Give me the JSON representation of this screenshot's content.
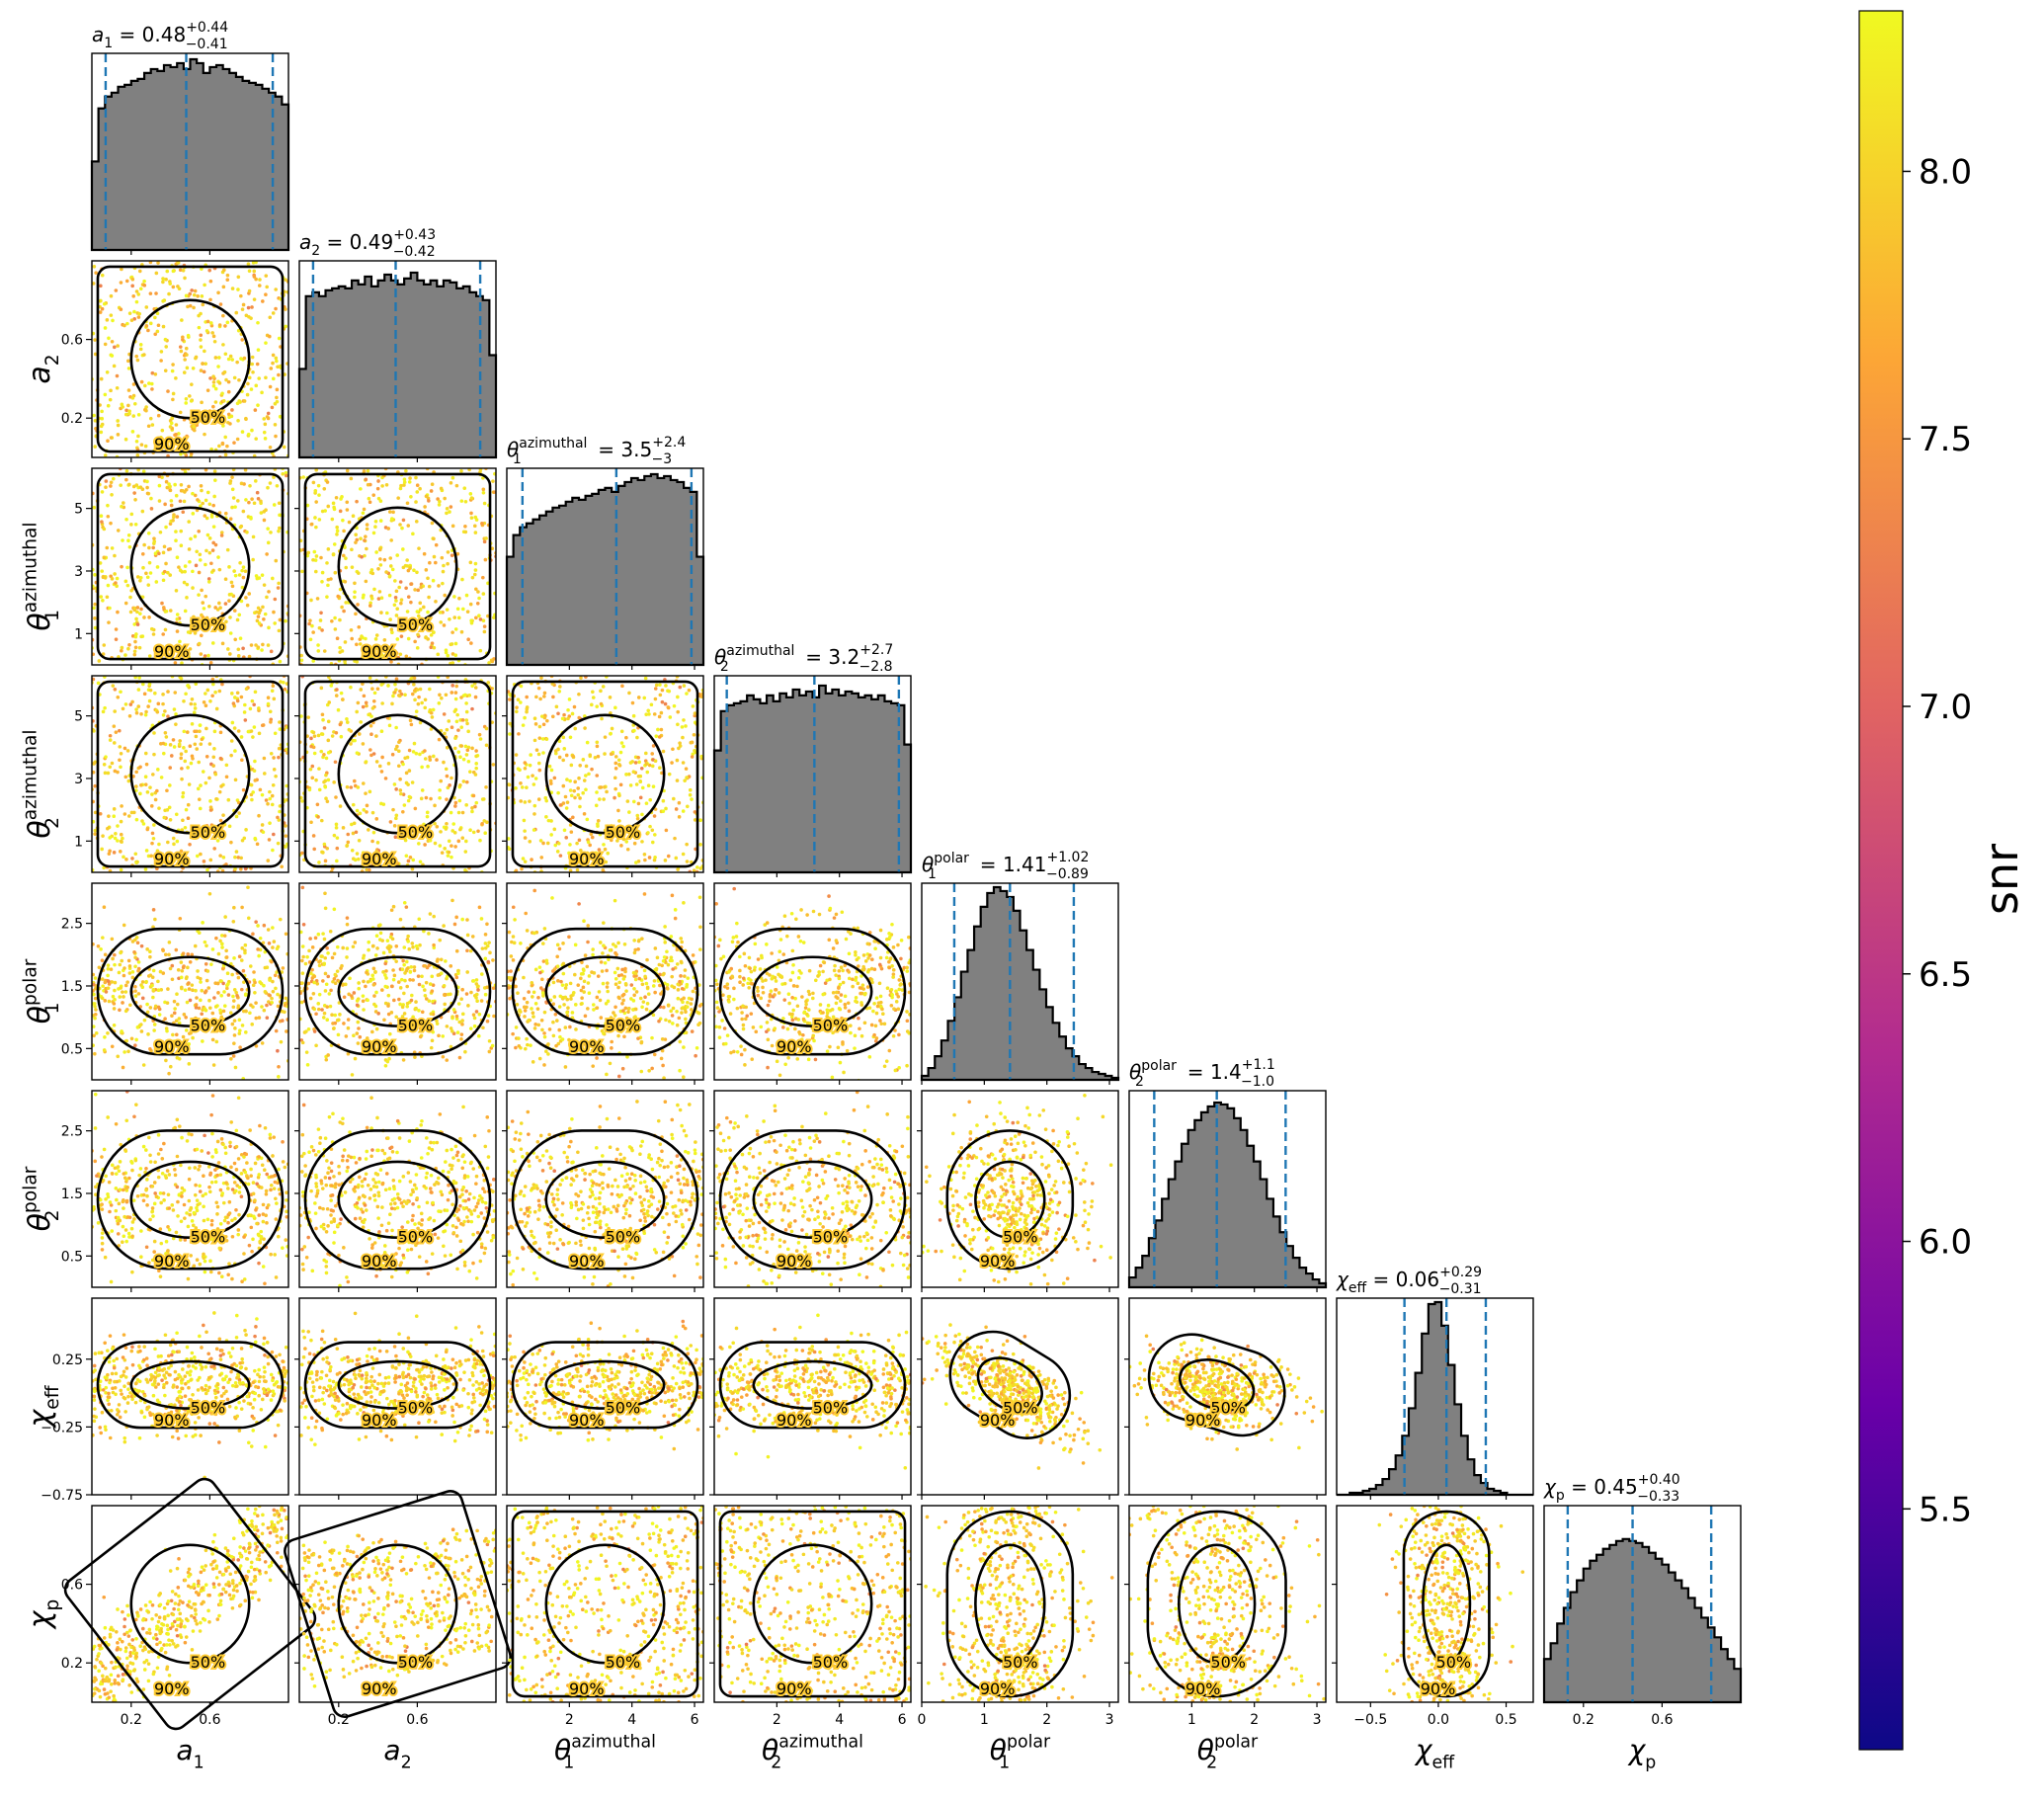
{
  "colors": {
    "histogram_fill": "#808080",
    "quantile_line": "#1f77b4",
    "contour": "#000000",
    "colormap": [
      "#0d0887",
      "#6a00a8",
      "#b12a90",
      "#e16462",
      "#fca636",
      "#f0f921"
    ]
  },
  "chart_data": {
    "type": "scatter",
    "subtype": "corner plot (pairwise scatter + contours, marginal histograms)",
    "parameters": [
      {
        "key": "a1",
        "symbol": "a",
        "sub": "1",
        "sup": "",
        "title_value": "0.48",
        "title_plus": "+0.44",
        "title_minus": "−0.41",
        "median": 0.48,
        "low": 0.07,
        "high": 0.92,
        "range": [
          0.0,
          1.0
        ],
        "ticks": [
          0.2,
          0.6
        ],
        "tick_labels": [
          "0.2",
          "0.6"
        ],
        "hist": [
          0.45,
          0.72,
          0.78,
          0.8,
          0.83,
          0.84,
          0.86,
          0.87,
          0.9,
          0.92,
          0.91,
          0.94,
          0.93,
          0.95,
          0.92,
          0.97,
          0.95,
          0.9,
          0.93,
          0.94,
          0.92,
          0.9,
          0.88,
          0.86,
          0.85,
          0.84,
          0.82,
          0.8,
          0.78,
          0.74
        ]
      },
      {
        "key": "a2",
        "symbol": "a",
        "sub": "2",
        "sup": "",
        "title_value": "0.49",
        "title_plus": "+0.43",
        "title_minus": "−0.42",
        "median": 0.49,
        "low": 0.07,
        "high": 0.92,
        "range": [
          0.0,
          1.0
        ],
        "ticks": [
          0.2,
          0.6
        ],
        "tick_labels": [
          "0.2",
          "0.6"
        ],
        "hist": [
          0.45,
          0.82,
          0.84,
          0.82,
          0.85,
          0.86,
          0.87,
          0.86,
          0.9,
          0.88,
          0.92,
          0.87,
          0.9,
          0.93,
          0.9,
          0.88,
          0.91,
          0.94,
          0.9,
          0.88,
          0.9,
          0.87,
          0.9,
          0.89,
          0.86,
          0.87,
          0.84,
          0.82,
          0.8,
          0.52
        ]
      },
      {
        "key": "theta1_az",
        "symbol": "θ",
        "sub": "1",
        "sup": "azimuthal",
        "title_value": "3.5",
        "title_plus": "+2.4",
        "title_minus": "−3",
        "median": 3.5,
        "low": 0.5,
        "high": 5.9,
        "range": [
          0.0,
          6.283
        ],
        "ticks": [
          2,
          4,
          6
        ],
        "tick_labels": [
          "2",
          "4",
          "6"
        ],
        "hist": [
          0.55,
          0.66,
          0.7,
          0.72,
          0.74,
          0.76,
          0.78,
          0.8,
          0.81,
          0.83,
          0.85,
          0.84,
          0.86,
          0.87,
          0.89,
          0.9,
          0.88,
          0.91,
          0.93,
          0.95,
          0.94,
          0.96,
          0.97,
          0.95,
          0.96,
          0.94,
          0.93,
          0.9,
          0.88,
          0.55
        ]
      },
      {
        "key": "theta2_az",
        "symbol": "θ",
        "sub": "2",
        "sup": "azimuthal",
        "title_value": "3.2",
        "title_plus": "+2.7",
        "title_minus": "−2.8",
        "median": 3.2,
        "low": 0.4,
        "high": 5.9,
        "range": [
          0.0,
          6.283
        ],
        "ticks": [
          2,
          4,
          6
        ],
        "tick_labels": [
          "2",
          "4",
          "6"
        ],
        "hist": [
          0.62,
          0.82,
          0.85,
          0.86,
          0.87,
          0.9,
          0.88,
          0.86,
          0.9,
          0.87,
          0.91,
          0.89,
          0.93,
          0.9,
          0.92,
          0.89,
          0.95,
          0.91,
          0.93,
          0.9,
          0.92,
          0.91,
          0.89,
          0.9,
          0.88,
          0.9,
          0.87,
          0.86,
          0.85,
          0.65
        ]
      },
      {
        "key": "theta1_pol",
        "symbol": "θ",
        "sub": "1",
        "sup": "polar",
        "title_value": "1.41",
        "title_plus": "+1.02",
        "title_minus": "−0.89",
        "median": 1.41,
        "low": 0.52,
        "high": 2.43,
        "range": [
          0.0,
          3.1416
        ],
        "ticks": [
          0,
          1,
          2,
          3
        ],
        "tick_labels": [
          "0",
          "1",
          "2",
          "3"
        ],
        "hist": [
          0.02,
          0.06,
          0.12,
          0.2,
          0.3,
          0.42,
          0.55,
          0.66,
          0.78,
          0.88,
          0.95,
          0.98,
          0.96,
          0.93,
          0.86,
          0.76,
          0.66,
          0.56,
          0.46,
          0.37,
          0.29,
          0.22,
          0.16,
          0.12,
          0.08,
          0.06,
          0.04,
          0.03,
          0.02,
          0.01
        ]
      },
      {
        "key": "theta2_pol",
        "symbol": "θ",
        "sub": "2",
        "sup": "polar",
        "title_value": "1.4",
        "title_plus": "+1.1",
        "title_minus": "−1.0",
        "median": 1.4,
        "low": 0.4,
        "high": 2.5,
        "range": [
          0.0,
          3.1416
        ],
        "ticks": [
          1,
          2,
          3
        ],
        "tick_labels": [
          "1",
          "2",
          "3"
        ],
        "hist": [
          0.05,
          0.1,
          0.16,
          0.25,
          0.34,
          0.45,
          0.55,
          0.64,
          0.73,
          0.8,
          0.85,
          0.89,
          0.92,
          0.94,
          0.93,
          0.91,
          0.86,
          0.8,
          0.72,
          0.64,
          0.55,
          0.45,
          0.36,
          0.28,
          0.21,
          0.15,
          0.1,
          0.07,
          0.04,
          0.02
        ]
      },
      {
        "key": "chi_eff",
        "symbol": "χ",
        "sub": "eff",
        "sup": "",
        "title_value": "0.06",
        "title_plus": "+0.29",
        "title_minus": "−0.31",
        "median": 0.06,
        "low": -0.25,
        "high": 0.35,
        "range": [
          -0.75,
          0.7
        ],
        "ticks": [
          -0.5,
          0.0,
          0.5
        ],
        "tick_labels": [
          "−0.5",
          "0.0",
          "0.5"
        ],
        "hist": [
          0.0,
          0.0,
          0.01,
          0.01,
          0.02,
          0.03,
          0.05,
          0.08,
          0.13,
          0.2,
          0.3,
          0.44,
          0.62,
          0.82,
          0.97,
          0.98,
          0.86,
          0.66,
          0.46,
          0.3,
          0.18,
          0.1,
          0.06,
          0.03,
          0.02,
          0.01,
          0.0,
          0.0,
          0.0,
          0.0
        ]
      },
      {
        "key": "chi_p",
        "symbol": "χ",
        "sub": "p",
        "sup": "",
        "title_value": "0.45",
        "title_plus": "+0.40",
        "title_minus": "−0.33",
        "median": 0.45,
        "low": 0.12,
        "high": 0.85,
        "range": [
          0.0,
          1.0
        ],
        "ticks": [
          0.2,
          0.6
        ],
        "tick_labels": [
          "0.2",
          "0.6"
        ],
        "hist": [
          0.22,
          0.3,
          0.4,
          0.48,
          0.56,
          0.62,
          0.68,
          0.72,
          0.75,
          0.78,
          0.8,
          0.82,
          0.83,
          0.82,
          0.81,
          0.79,
          0.76,
          0.73,
          0.7,
          0.66,
          0.62,
          0.58,
          0.53,
          0.48,
          0.43,
          0.38,
          0.33,
          0.27,
          0.22,
          0.17
        ]
      }
    ],
    "y_ticks": {
      "a2": {
        "ticks": [
          0.2,
          0.6
        ],
        "labels": [
          "0.2",
          "0.6"
        ]
      },
      "theta1_az": {
        "ticks": [
          1,
          3,
          5
        ],
        "labels": [
          "1",
          "3",
          "5"
        ]
      },
      "theta2_az": {
        "ticks": [
          1,
          3,
          5
        ],
        "labels": [
          "1",
          "3",
          "5"
        ]
      },
      "theta1_pol": {
        "ticks": [
          0.5,
          1.5,
          2.5
        ],
        "labels": [
          "0.5",
          "1.5",
          "2.5"
        ]
      },
      "theta2_pol": {
        "ticks": [
          0.5,
          1.5,
          2.5
        ],
        "labels": [
          "0.5",
          "1.5",
          "2.5"
        ]
      },
      "chi_eff": {
        "ticks": [
          -0.75,
          -0.25,
          0.25
        ],
        "labels": [
          "−0.75",
          "−0.25",
          "0.25"
        ]
      },
      "chi_p": {
        "ticks": [
          0.2,
          0.6
        ],
        "labels": [
          "0.2",
          "0.6"
        ]
      }
    },
    "contour_levels": [
      "50%",
      "90%"
    ],
    "colorbar": {
      "label": "snr",
      "range": [
        5.05,
        8.3
      ],
      "ticks": [
        5.5,
        6.0,
        6.5,
        7.0,
        7.5,
        8.0
      ],
      "tick_labels": [
        "5.5",
        "6.0",
        "6.5",
        "7.0",
        "7.5",
        "8.0"
      ],
      "colormap": "plasma"
    },
    "scatter_color_range": [
      7.2,
      8.3
    ],
    "correlations": {
      "a1|chi_p": 0.9,
      "a2|chi_p": 0.35,
      "theta1_pol|chi_eff": -0.7,
      "theta2_pol|chi_eff": -0.35,
      "chi_eff|chi_p": 0.0
    }
  }
}
